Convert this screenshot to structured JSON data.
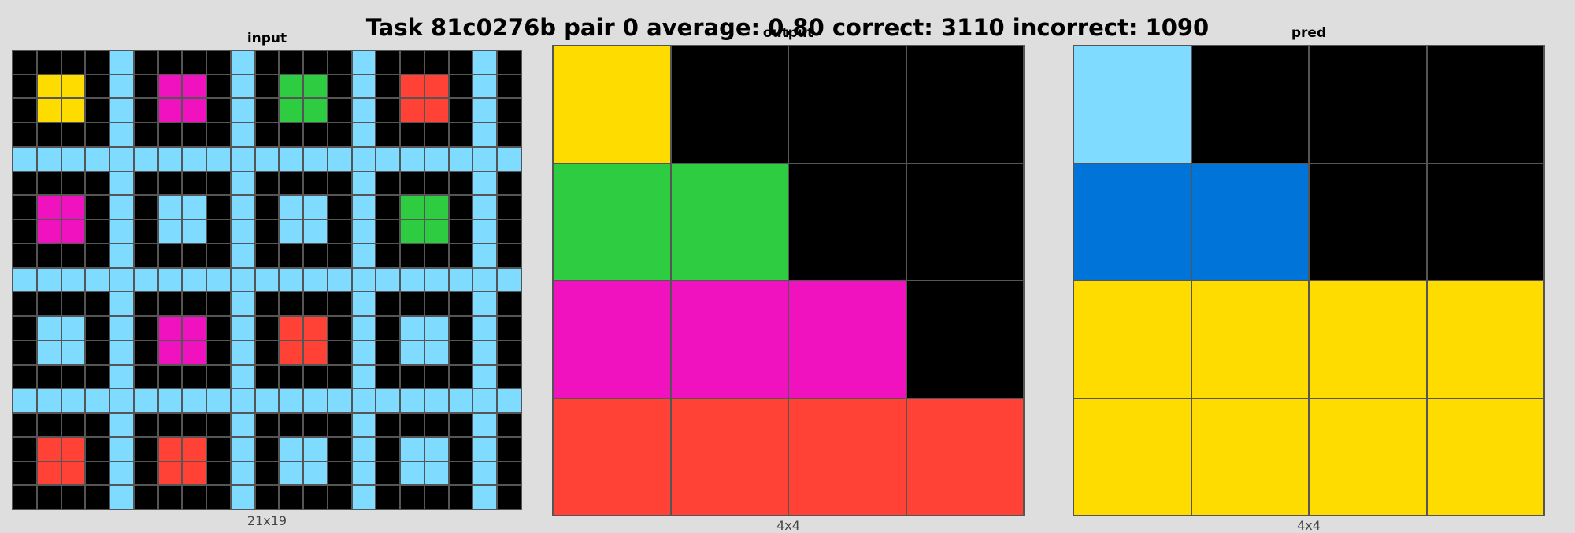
{
  "title": "Task 81c0276b pair 0 average: 0.80 correct: 3110 incorrect: 1090",
  "colors": {
    "0": "#000000",
    "1": "#0074D9",
    "2": "#FF4136",
    "3": "#2ECC40",
    "4": "#FFDC00",
    "6": "#F012BE",
    "8": "#7FDBFF"
  },
  "panels": [
    {
      "title": "input",
      "caption": "21x19",
      "grid": [
        [
          0,
          0,
          0,
          0,
          8,
          0,
          0,
          0,
          0,
          8,
          0,
          0,
          0,
          0,
          8,
          0,
          0,
          0,
          0,
          8,
          0
        ],
        [
          0,
          4,
          4,
          0,
          8,
          0,
          6,
          6,
          0,
          8,
          0,
          3,
          3,
          0,
          8,
          0,
          2,
          2,
          0,
          8,
          0
        ],
        [
          0,
          4,
          4,
          0,
          8,
          0,
          6,
          6,
          0,
          8,
          0,
          3,
          3,
          0,
          8,
          0,
          2,
          2,
          0,
          8,
          0
        ],
        [
          0,
          0,
          0,
          0,
          8,
          0,
          0,
          0,
          0,
          8,
          0,
          0,
          0,
          0,
          8,
          0,
          0,
          0,
          0,
          8,
          0
        ],
        [
          8,
          8,
          8,
          8,
          8,
          8,
          8,
          8,
          8,
          8,
          8,
          8,
          8,
          8,
          8,
          8,
          8,
          8,
          8,
          8,
          8
        ],
        [
          0,
          0,
          0,
          0,
          8,
          0,
          0,
          0,
          0,
          8,
          0,
          0,
          0,
          0,
          8,
          0,
          0,
          0,
          0,
          8,
          0
        ],
        [
          0,
          6,
          6,
          0,
          8,
          0,
          8,
          8,
          0,
          8,
          0,
          8,
          8,
          0,
          8,
          0,
          3,
          3,
          0,
          8,
          0
        ],
        [
          0,
          6,
          6,
          0,
          8,
          0,
          8,
          8,
          0,
          8,
          0,
          8,
          8,
          0,
          8,
          0,
          3,
          3,
          0,
          8,
          0
        ],
        [
          0,
          0,
          0,
          0,
          8,
          0,
          0,
          0,
          0,
          8,
          0,
          0,
          0,
          0,
          8,
          0,
          0,
          0,
          0,
          8,
          0
        ],
        [
          8,
          8,
          8,
          8,
          8,
          8,
          8,
          8,
          8,
          8,
          8,
          8,
          8,
          8,
          8,
          8,
          8,
          8,
          8,
          8,
          8
        ],
        [
          0,
          0,
          0,
          0,
          8,
          0,
          0,
          0,
          0,
          8,
          0,
          0,
          0,
          0,
          8,
          0,
          0,
          0,
          0,
          8,
          0
        ],
        [
          0,
          8,
          8,
          0,
          8,
          0,
          6,
          6,
          0,
          8,
          0,
          2,
          2,
          0,
          8,
          0,
          8,
          8,
          0,
          8,
          0
        ],
        [
          0,
          8,
          8,
          0,
          8,
          0,
          6,
          6,
          0,
          8,
          0,
          2,
          2,
          0,
          8,
          0,
          8,
          8,
          0,
          8,
          0
        ],
        [
          0,
          0,
          0,
          0,
          8,
          0,
          0,
          0,
          0,
          8,
          0,
          0,
          0,
          0,
          8,
          0,
          0,
          0,
          0,
          8,
          0
        ],
        [
          8,
          8,
          8,
          8,
          8,
          8,
          8,
          8,
          8,
          8,
          8,
          8,
          8,
          8,
          8,
          8,
          8,
          8,
          8,
          8,
          8
        ],
        [
          0,
          0,
          0,
          0,
          8,
          0,
          0,
          0,
          0,
          8,
          0,
          0,
          0,
          0,
          8,
          0,
          0,
          0,
          0,
          8,
          0
        ],
        [
          0,
          2,
          2,
          0,
          8,
          0,
          2,
          2,
          0,
          8,
          0,
          8,
          8,
          0,
          8,
          0,
          8,
          8,
          0,
          8,
          0
        ],
        [
          0,
          2,
          2,
          0,
          8,
          0,
          2,
          2,
          0,
          8,
          0,
          8,
          8,
          0,
          8,
          0,
          8,
          8,
          0,
          8,
          0
        ],
        [
          0,
          0,
          0,
          0,
          8,
          0,
          0,
          0,
          0,
          8,
          0,
          0,
          0,
          0,
          8,
          0,
          0,
          0,
          0,
          8,
          0
        ]
      ]
    },
    {
      "title": "output",
      "caption": "4x4",
      "grid": [
        [
          4,
          0,
          0,
          0
        ],
        [
          3,
          3,
          0,
          0
        ],
        [
          6,
          6,
          6,
          0
        ],
        [
          2,
          2,
          2,
          2
        ]
      ]
    },
    {
      "title": "pred",
      "caption": "4x4",
      "grid": [
        [
          8,
          0,
          0,
          0
        ],
        [
          1,
          1,
          0,
          0
        ],
        [
          4,
          4,
          4,
          4
        ],
        [
          4,
          4,
          4,
          4
        ]
      ]
    }
  ]
}
